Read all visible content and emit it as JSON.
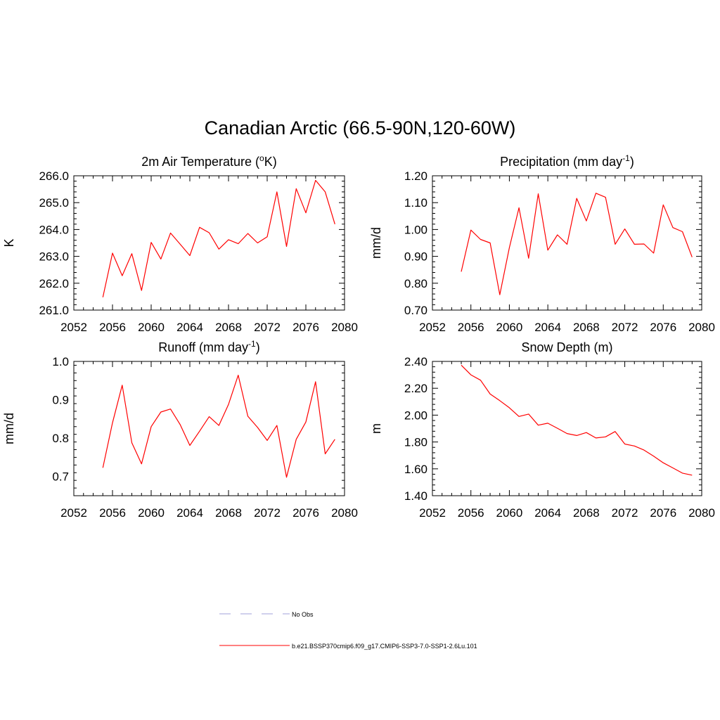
{
  "figure": {
    "title": "Canadian Arctic (66.5-90N,120-60W)"
  },
  "legend": {
    "items": [
      {
        "label": "No Obs",
        "style": "dashed",
        "color": "#a0a0d8"
      },
      {
        "label": "b.e21.BSSP370cmip6.f09_g17.CMIP6-SSP3-7.0-SSP1-2.6Lu.101",
        "style": "solid",
        "color": "#ff0000"
      }
    ]
  },
  "chart_data": [
    {
      "type": "line",
      "title": "2m Air Temperature (°K)",
      "title_main": "2m Air Temperature (",
      "title_sup": "o",
      "title_tail": "K)",
      "ylabel": "K",
      "xlim": [
        2052,
        2080
      ],
      "ylim": [
        261.0,
        266.0
      ],
      "x_ticks": [
        "2052",
        "2056",
        "2060",
        "2064",
        "2068",
        "2072",
        "2076",
        "2080"
      ],
      "y_ticks": [
        "261.0",
        "262.0",
        "263.0",
        "264.0",
        "265.0",
        "266.0"
      ],
      "y_tick_values": [
        261.0,
        262.0,
        263.0,
        264.0,
        265.0,
        266.0
      ],
      "series": [
        {
          "color": "#ff0000",
          "x": [
            2055,
            2056,
            2057,
            2058,
            2059,
            2060,
            2061,
            2062,
            2063,
            2064,
            2065,
            2066,
            2067,
            2068,
            2069,
            2070,
            2071,
            2072,
            2073,
            2074,
            2075,
            2076,
            2077,
            2078,
            2079
          ],
          "y": [
            261.48,
            263.12,
            262.28,
            263.1,
            261.73,
            263.52,
            262.9,
            263.87,
            263.45,
            263.03,
            264.08,
            263.88,
            263.27,
            263.62,
            263.47,
            263.85,
            263.5,
            263.73,
            265.4,
            263.37,
            265.52,
            264.62,
            265.83,
            265.4,
            264.2
          ]
        }
      ]
    },
    {
      "type": "line",
      "title": "Precipitation (mm day-1)",
      "title_main": "Precipitation (mm day",
      "title_sup": "-1",
      "title_tail": ")",
      "ylabel": "mm/d",
      "xlim": [
        2052,
        2080
      ],
      "ylim": [
        0.7,
        1.2
      ],
      "x_ticks": [
        "2052",
        "2056",
        "2060",
        "2064",
        "2068",
        "2072",
        "2076",
        "2080"
      ],
      "y_ticks": [
        "0.70",
        "0.80",
        "0.90",
        "1.00",
        "1.10",
        "1.20"
      ],
      "y_tick_values": [
        0.7,
        0.8,
        0.9,
        1.0,
        1.1,
        1.2
      ],
      "series": [
        {
          "color": "#ff0000",
          "x": [
            2055,
            2056,
            2057,
            2058,
            2059,
            2060,
            2061,
            2062,
            2063,
            2064,
            2065,
            2066,
            2067,
            2068,
            2069,
            2070,
            2071,
            2072,
            2073,
            2074,
            2075,
            2076,
            2077,
            2078,
            2079
          ],
          "y": [
            0.843,
            0.998,
            0.963,
            0.95,
            0.757,
            0.932,
            1.081,
            0.893,
            1.133,
            0.923,
            0.98,
            0.945,
            1.116,
            1.032,
            1.135,
            1.12,
            0.945,
            1.002,
            0.945,
            0.946,
            0.912,
            1.092,
            1.007,
            0.992,
            0.897
          ]
        }
      ]
    },
    {
      "type": "line",
      "title": "Runoff (mm day-1)",
      "title_main": "Runoff (mm day",
      "title_sup": "-1",
      "title_tail": ")",
      "ylabel": "mm/d",
      "xlim": [
        2052,
        2080
      ],
      "ylim": [
        0.65,
        1.0
      ],
      "x_ticks": [
        "2052",
        "2056",
        "2060",
        "2064",
        "2068",
        "2072",
        "2076",
        "2080"
      ],
      "y_ticks": [
        "0.7",
        "0.8",
        "0.9",
        "1.0"
      ],
      "y_tick_values": [
        0.7,
        0.8,
        0.9,
        1.0
      ],
      "series": [
        {
          "color": "#ff0000",
          "x": [
            2055,
            2056,
            2057,
            2058,
            2059,
            2060,
            2061,
            2062,
            2063,
            2064,
            2065,
            2066,
            2067,
            2068,
            2069,
            2070,
            2071,
            2072,
            2073,
            2074,
            2075,
            2076,
            2077,
            2078,
            2079
          ],
          "y": [
            0.723,
            0.84,
            0.938,
            0.788,
            0.733,
            0.83,
            0.868,
            0.876,
            0.835,
            0.781,
            0.818,
            0.856,
            0.833,
            0.888,
            0.964,
            0.857,
            0.828,
            0.794,
            0.833,
            0.698,
            0.797,
            0.842,
            0.947,
            0.759,
            0.797
          ]
        }
      ]
    },
    {
      "type": "line",
      "title": "Snow Depth (m)",
      "title_main": "Snow Depth (m)",
      "title_sup": "",
      "title_tail": "",
      "ylabel": "m",
      "xlim": [
        2052,
        2080
      ],
      "ylim": [
        1.4,
        2.4
      ],
      "x_ticks": [
        "2052",
        "2056",
        "2060",
        "2064",
        "2068",
        "2072",
        "2076",
        "2080"
      ],
      "y_ticks": [
        "1.40",
        "1.60",
        "1.80",
        "2.00",
        "2.20",
        "2.40"
      ],
      "y_tick_values": [
        1.4,
        1.6,
        1.8,
        2.0,
        2.2,
        2.4
      ],
      "series": [
        {
          "color": "#ff0000",
          "x": [
            2055,
            2056,
            2057,
            2058,
            2059,
            2060,
            2061,
            2062,
            2063,
            2064,
            2065,
            2066,
            2067,
            2068,
            2069,
            2070,
            2071,
            2072,
            2073,
            2074,
            2075,
            2076,
            2077,
            2078,
            2079
          ],
          "y": [
            2.372,
            2.3,
            2.26,
            2.157,
            2.108,
            2.055,
            1.99,
            2.008,
            1.925,
            1.94,
            1.902,
            1.863,
            1.848,
            1.87,
            1.83,
            1.838,
            1.878,
            1.785,
            1.77,
            1.74,
            1.695,
            1.645,
            1.607,
            1.568,
            1.553
          ]
        }
      ]
    }
  ]
}
